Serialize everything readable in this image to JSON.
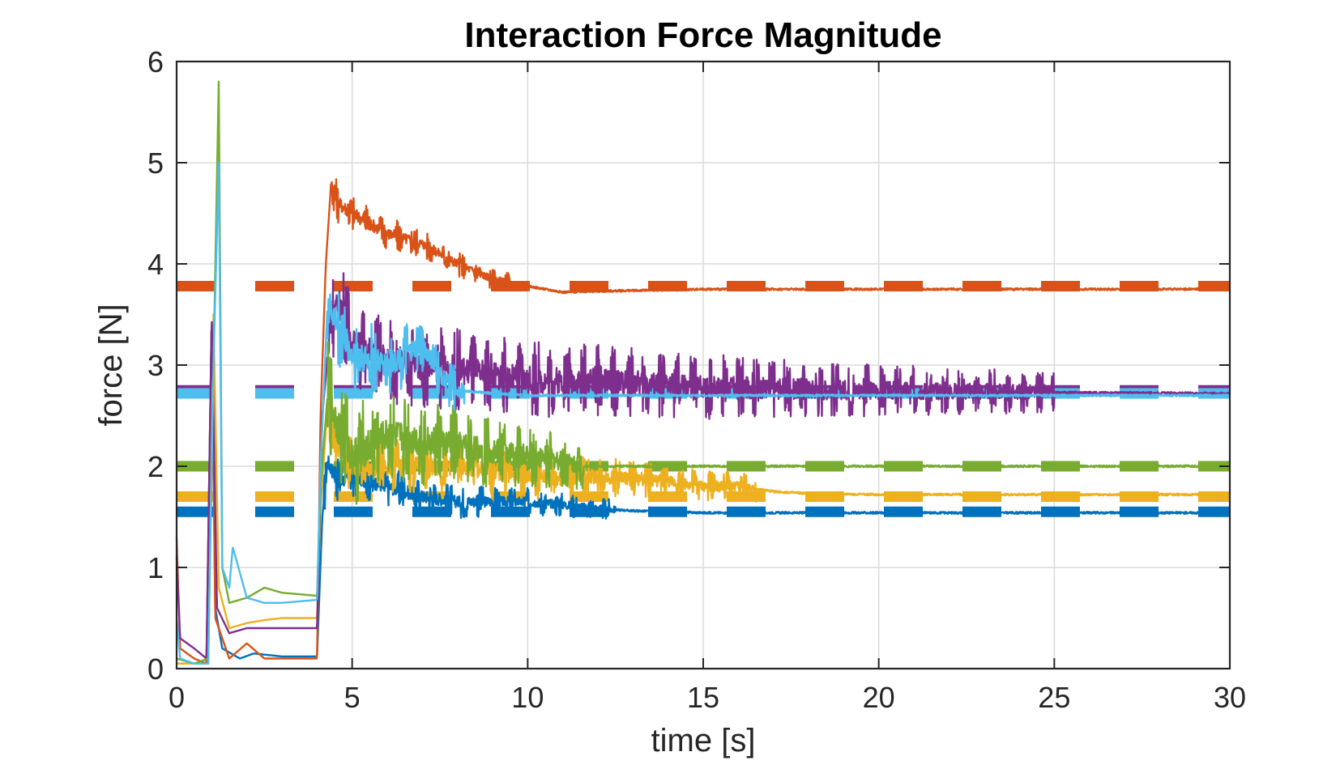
{
  "chart_data": {
    "type": "line",
    "title": "Interaction Force Magnitude",
    "xlabel": "time [s]",
    "ylabel": "force [N]",
    "xlim": [
      0,
      30
    ],
    "ylim": [
      0,
      6
    ],
    "xticks": [
      0,
      5,
      10,
      15,
      20,
      25,
      30
    ],
    "yticks": [
      0,
      1,
      2,
      3,
      4,
      5,
      6
    ],
    "xtick_labels": [
      "0",
      "5",
      "10",
      "15",
      "20",
      "25",
      "30"
    ],
    "ytick_labels": [
      "0",
      "1",
      "2",
      "3",
      "4",
      "5",
      "6"
    ],
    "grid": true,
    "box": true,
    "series": [
      {
        "name": "series-blue",
        "color": "#0072BD",
        "reference": 1.55,
        "points": [
          [
            0,
            0.05
          ],
          [
            0.4,
            0.05
          ],
          [
            0.85,
            0.05
          ],
          [
            1.0,
            3.5
          ],
          [
            1.1,
            0.6
          ],
          [
            1.3,
            0.2
          ],
          [
            1.8,
            0.1
          ],
          [
            2.2,
            0.15
          ],
          [
            3.0,
            0.12
          ],
          [
            4.0,
            0.12
          ],
          [
            4.15,
            1.5
          ],
          [
            4.3,
            2.05
          ],
          [
            4.6,
            1.85
          ],
          [
            5.0,
            1.9
          ],
          [
            6.0,
            1.8
          ],
          [
            7.0,
            1.7
          ],
          [
            8.0,
            1.65
          ],
          [
            9.0,
            1.65
          ],
          [
            10.0,
            1.65
          ],
          [
            11.0,
            1.62
          ],
          [
            12.0,
            1.58
          ],
          [
            13.0,
            1.56
          ],
          [
            14.0,
            1.55
          ],
          [
            15.0,
            1.54
          ],
          [
            20.0,
            1.54
          ],
          [
            30.0,
            1.54
          ]
        ]
      },
      {
        "name": "series-orange",
        "color": "#D95319",
        "reference": 3.78,
        "points": [
          [
            0,
            1.3
          ],
          [
            0.1,
            0.2
          ],
          [
            0.5,
            0.1
          ],
          [
            0.85,
            0.05
          ],
          [
            1.0,
            3.5
          ],
          [
            1.1,
            0.5
          ],
          [
            1.5,
            0.1
          ],
          [
            2.0,
            0.25
          ],
          [
            2.5,
            0.1
          ],
          [
            3.0,
            0.1
          ],
          [
            4.0,
            0.1
          ],
          [
            4.1,
            2.5
          ],
          [
            4.25,
            4.0
          ],
          [
            4.4,
            4.8
          ],
          [
            4.6,
            4.6
          ],
          [
            5.0,
            4.5
          ],
          [
            6.0,
            4.3
          ],
          [
            7.0,
            4.2
          ],
          [
            8.0,
            4.0
          ],
          [
            9.0,
            3.85
          ],
          [
            10.0,
            3.78
          ],
          [
            11.0,
            3.72
          ],
          [
            12.0,
            3.73
          ],
          [
            15.0,
            3.75
          ],
          [
            20.0,
            3.75
          ],
          [
            30.0,
            3.75
          ]
        ]
      },
      {
        "name": "series-yellow",
        "color": "#EDB120",
        "reference": 1.7,
        "points": [
          [
            0,
            0.05
          ],
          [
            0.5,
            0.05
          ],
          [
            0.9,
            0.05
          ],
          [
            1.05,
            3.5
          ],
          [
            1.2,
            0.8
          ],
          [
            1.5,
            0.4
          ],
          [
            2.0,
            0.45
          ],
          [
            2.5,
            0.48
          ],
          [
            3.0,
            0.5
          ],
          [
            4.0,
            0.5
          ],
          [
            4.1,
            1.6
          ],
          [
            4.3,
            2.6
          ],
          [
            4.6,
            2.2
          ],
          [
            5.0,
            2.0
          ],
          [
            6.0,
            2.0
          ],
          [
            7.0,
            2.0
          ],
          [
            8.0,
            2.0
          ],
          [
            9.0,
            1.95
          ],
          [
            10.0,
            1.9
          ],
          [
            11.0,
            1.88
          ],
          [
            12.0,
            1.9
          ],
          [
            13.0,
            1.88
          ],
          [
            14.0,
            1.85
          ],
          [
            15.0,
            1.8
          ],
          [
            16.0,
            1.8
          ],
          [
            17.0,
            1.75
          ],
          [
            18.0,
            1.73
          ],
          [
            20.0,
            1.72
          ],
          [
            30.0,
            1.72
          ]
        ]
      },
      {
        "name": "series-purple",
        "color": "#7E2F8E",
        "reference": 2.75,
        "points": [
          [
            0,
            1.1
          ],
          [
            0.1,
            0.3
          ],
          [
            0.5,
            0.2
          ],
          [
            0.85,
            0.1
          ],
          [
            1.0,
            3.5
          ],
          [
            1.15,
            0.6
          ],
          [
            1.5,
            0.35
          ],
          [
            2.0,
            0.4
          ],
          [
            2.5,
            0.4
          ],
          [
            3.0,
            0.4
          ],
          [
            4.0,
            0.4
          ],
          [
            4.15,
            2.5
          ],
          [
            4.4,
            3.5
          ],
          [
            4.7,
            3.6
          ],
          [
            5.0,
            3.2
          ],
          [
            6.0,
            3.05
          ],
          [
            7.0,
            3.0
          ],
          [
            8.0,
            2.95
          ],
          [
            9.0,
            2.9
          ],
          [
            10.0,
            2.85
          ],
          [
            11.0,
            2.85
          ],
          [
            12.0,
            2.85
          ],
          [
            14.0,
            2.8
          ],
          [
            16.0,
            2.78
          ],
          [
            18.0,
            2.76
          ],
          [
            20.0,
            2.75
          ],
          [
            25.0,
            2.73
          ],
          [
            30.0,
            2.72
          ]
        ]
      },
      {
        "name": "series-green",
        "color": "#77AC30",
        "reference": 2.0,
        "points": [
          [
            0,
            0.1
          ],
          [
            0.5,
            0.05
          ],
          [
            0.9,
            0.1
          ],
          [
            1.05,
            3.0
          ],
          [
            1.2,
            5.8
          ],
          [
            1.3,
            1.0
          ],
          [
            1.5,
            0.65
          ],
          [
            2.0,
            0.7
          ],
          [
            2.5,
            0.8
          ],
          [
            3.0,
            0.75
          ],
          [
            4.0,
            0.72
          ],
          [
            4.1,
            1.8
          ],
          [
            4.3,
            2.7
          ],
          [
            4.6,
            2.4
          ],
          [
            5.0,
            2.1
          ],
          [
            6.0,
            2.3
          ],
          [
            7.0,
            2.25
          ],
          [
            8.0,
            2.2
          ],
          [
            9.0,
            2.15
          ],
          [
            10.0,
            2.1
          ],
          [
            11.0,
            2.05
          ],
          [
            11.5,
            2.0
          ],
          [
            12.0,
            2.0
          ],
          [
            30.0,
            2.0
          ]
        ]
      },
      {
        "name": "series-cyan",
        "color": "#4DBEEE",
        "reference": 2.72,
        "points": [
          [
            0,
            0.5
          ],
          [
            0.1,
            0.1
          ],
          [
            0.5,
            0.05
          ],
          [
            0.9,
            0.05
          ],
          [
            1.05,
            3.0
          ],
          [
            1.2,
            5.0
          ],
          [
            1.3,
            1.0
          ],
          [
            1.5,
            0.8
          ],
          [
            1.6,
            1.2
          ],
          [
            2.0,
            0.7
          ],
          [
            2.5,
            0.65
          ],
          [
            3.0,
            0.65
          ],
          [
            4.0,
            0.68
          ],
          [
            4.1,
            2.0
          ],
          [
            4.3,
            3.6
          ],
          [
            4.6,
            3.4
          ],
          [
            5.0,
            3.1
          ],
          [
            6.0,
            3.0
          ],
          [
            7.0,
            3.2
          ],
          [
            7.5,
            2.9
          ],
          [
            8.0,
            2.75
          ],
          [
            9.0,
            2.72
          ],
          [
            10.0,
            2.7
          ],
          [
            12.0,
            2.7
          ],
          [
            15.0,
            2.7
          ],
          [
            20.0,
            2.7
          ],
          [
            30.0,
            2.7
          ]
        ]
      }
    ]
  }
}
